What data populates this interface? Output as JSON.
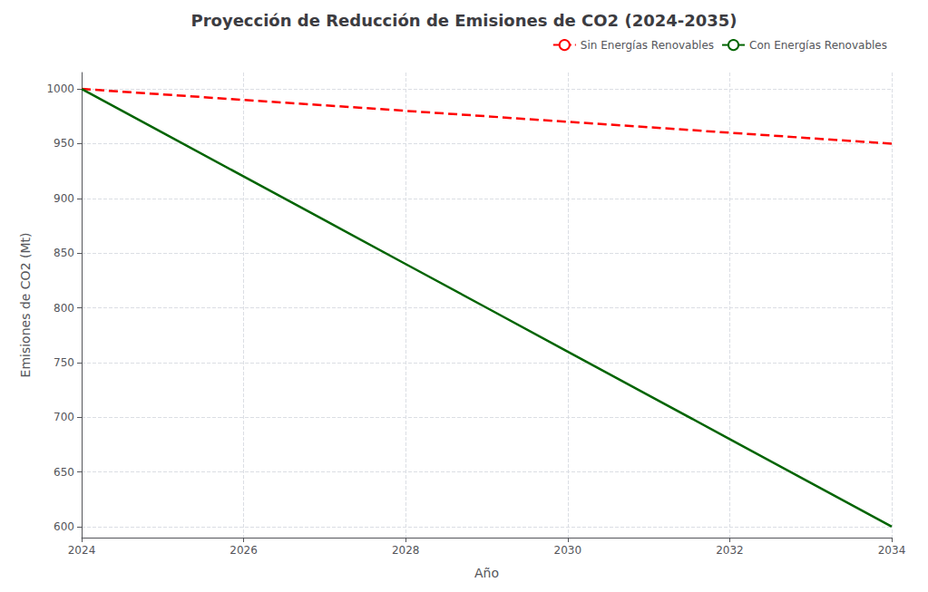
{
  "chart_data": {
    "type": "line",
    "title": "Proyección de Reducción de Emisiones de CO2 (2024-2035)",
    "xlabel": "Año",
    "ylabel": "Emisiones de CO2 (Mt)",
    "x": [
      2024,
      2025,
      2026,
      2027,
      2028,
      2029,
      2030,
      2031,
      2032,
      2033,
      2034
    ],
    "series": [
      {
        "name": "Sin Energías Renovables",
        "color": "#ff0000",
        "line_style": "dashed",
        "values": [
          1000,
          995,
          990,
          985,
          980,
          975,
          970,
          965,
          960,
          955,
          950
        ]
      },
      {
        "name": "Con Energías Renovables",
        "color": "#006400",
        "line_style": "solid",
        "values": [
          1000,
          960,
          920,
          880,
          840,
          800,
          760,
          720,
          680,
          640,
          600
        ]
      }
    ],
    "xlim": [
      2024,
      2034
    ],
    "ylim": [
      590,
      1015
    ],
    "xticks": [
      2024,
      2026,
      2028,
      2030,
      2032,
      2034
    ],
    "yticks": [
      600,
      650,
      700,
      750,
      800,
      850,
      900,
      950,
      1000
    ],
    "grid": true,
    "legend": "upper right"
  }
}
